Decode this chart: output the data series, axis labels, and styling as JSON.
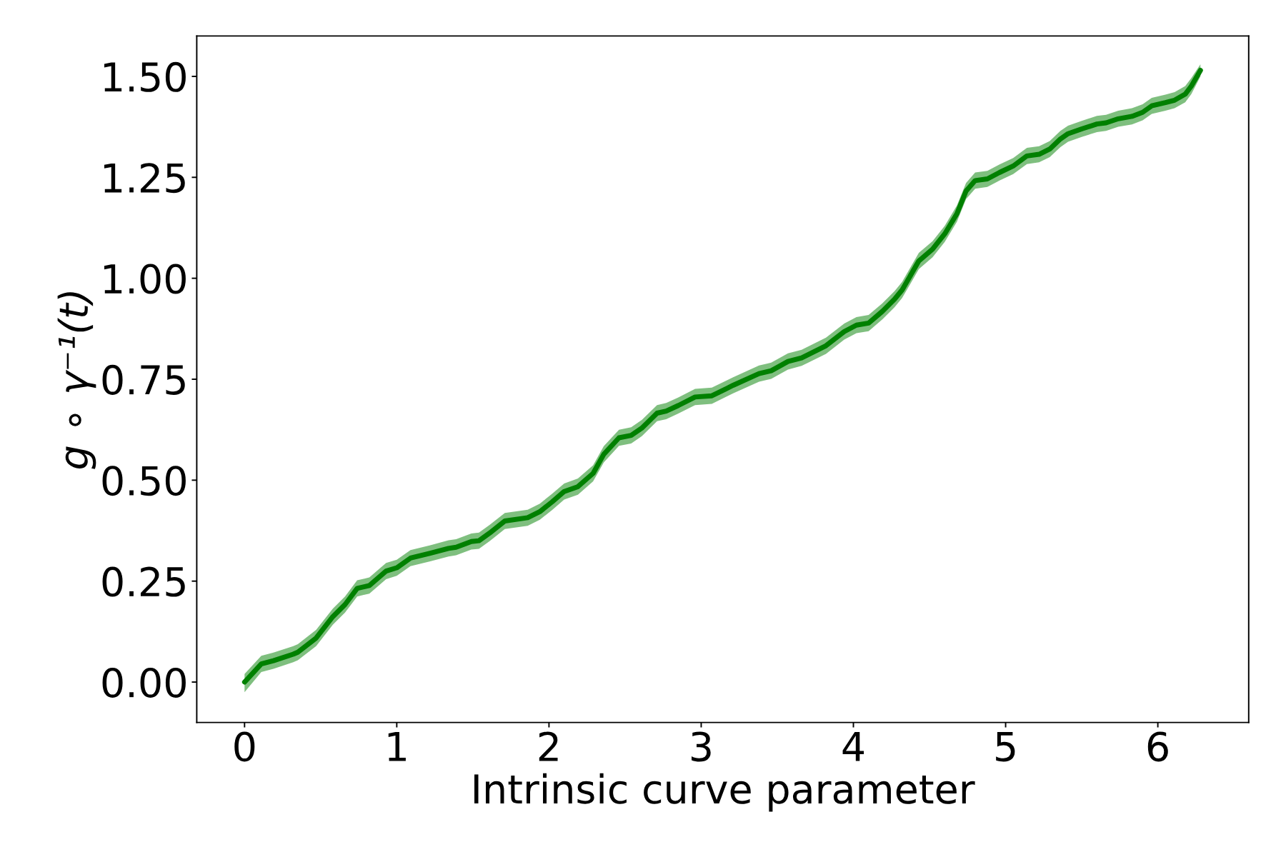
{
  "chart_data": {
    "type": "line",
    "xlabel": "Intrinsic curve parameter",
    "ylabel": "g ∘ γ⁻¹(t)",
    "xlim": [
      -0.314,
      6.597
    ],
    "ylim": [
      -0.1,
      1.6
    ],
    "xticks": [
      0,
      1,
      2,
      3,
      4,
      5,
      6
    ],
    "yticks": [
      {
        "value": 0,
        "label": "0.00"
      },
      {
        "value": 0.25,
        "label": "0.25"
      },
      {
        "value": 0.5,
        "label": "0.50"
      },
      {
        "value": 0.75,
        "label": "0.75"
      },
      {
        "value": 1,
        "label": "1.00"
      },
      {
        "value": 1.25,
        "label": "1.25"
      },
      {
        "value": 1.5,
        "label": "1.50"
      }
    ],
    "x": [
      0,
      0.11,
      0.19,
      0.32,
      0.35,
      0.47,
      0.58,
      0.66,
      0.74,
      0.82,
      0.93,
      1.0,
      1.09,
      1.22,
      1.34,
      1.39,
      1.49,
      1.54,
      1.61,
      1.71,
      1.86,
      1.94,
      2.02,
      2.1,
      2.19,
      2.29,
      2.36,
      2.46,
      2.54,
      2.61,
      2.71,
      2.77,
      2.85,
      2.96,
      3.07,
      3.21,
      3.38,
      3.46,
      3.57,
      3.66,
      3.82,
      3.94,
      4.02,
      4.1,
      4.19,
      4.27,
      4.32,
      4.43,
      4.52,
      4.6,
      4.68,
      4.74,
      4.8,
      4.88,
      4.96,
      5.05,
      5.14,
      5.22,
      5.29,
      5.36,
      5.41,
      5.5,
      5.6,
      5.66,
      5.74,
      5.83,
      5.9,
      5.96,
      6.05,
      6.11,
      6.18,
      6.22,
      6.28
    ],
    "series": [
      {
        "color": "#008000",
        "values": [
          0,
          0.045,
          0.053,
          0.069,
          0.074,
          0.109,
          0.162,
          0.192,
          0.232,
          0.239,
          0.275,
          0.283,
          0.307,
          0.319,
          0.331,
          0.334,
          0.348,
          0.35,
          0.369,
          0.399,
          0.407,
          0.422,
          0.446,
          0.472,
          0.484,
          0.517,
          0.564,
          0.605,
          0.611,
          0.629,
          0.666,
          0.671,
          0.685,
          0.706,
          0.709,
          0.735,
          0.764,
          0.771,
          0.794,
          0.803,
          0.833,
          0.868,
          0.884,
          0.889,
          0.918,
          0.948,
          0.971,
          1.043,
          1.072,
          1.11,
          1.16,
          1.216,
          1.242,
          1.246,
          1.262,
          1.278,
          1.303,
          1.307,
          1.32,
          1.345,
          1.358,
          1.37,
          1.382,
          1.385,
          1.395,
          1.401,
          1.411,
          1.427,
          1.435,
          1.441,
          1.456,
          1.476,
          1.515
        ],
        "upper": [
          0.02,
          0.065,
          0.073,
          0.089,
          0.094,
          0.129,
          0.182,
          0.212,
          0.252,
          0.259,
          0.295,
          0.303,
          0.327,
          0.339,
          0.351,
          0.354,
          0.368,
          0.37,
          0.389,
          0.419,
          0.427,
          0.442,
          0.466,
          0.492,
          0.504,
          0.537,
          0.584,
          0.625,
          0.631,
          0.649,
          0.686,
          0.691,
          0.705,
          0.726,
          0.729,
          0.755,
          0.784,
          0.791,
          0.814,
          0.823,
          0.853,
          0.888,
          0.904,
          0.909,
          0.938,
          0.968,
          0.991,
          1.063,
          1.092,
          1.13,
          1.18,
          1.236,
          1.262,
          1.266,
          1.282,
          1.298,
          1.323,
          1.327,
          1.34,
          1.365,
          1.378,
          1.39,
          1.402,
          1.405,
          1.415,
          1.421,
          1.431,
          1.447,
          1.455,
          1.461,
          1.476,
          1.496,
          1.53
        ],
        "lower": [
          -0.025,
          0.025,
          0.033,
          0.049,
          0.054,
          0.089,
          0.142,
          0.172,
          0.212,
          0.219,
          0.255,
          0.263,
          0.287,
          0.299,
          0.311,
          0.314,
          0.328,
          0.33,
          0.349,
          0.379,
          0.387,
          0.402,
          0.426,
          0.452,
          0.464,
          0.497,
          0.544,
          0.585,
          0.591,
          0.609,
          0.646,
          0.651,
          0.665,
          0.686,
          0.689,
          0.715,
          0.744,
          0.751,
          0.774,
          0.783,
          0.813,
          0.848,
          0.864,
          0.869,
          0.898,
          0.928,
          0.951,
          1.023,
          1.052,
          1.09,
          1.14,
          1.196,
          1.222,
          1.226,
          1.242,
          1.258,
          1.283,
          1.287,
          1.3,
          1.325,
          1.338,
          1.35,
          1.362,
          1.365,
          1.375,
          1.381,
          1.391,
          1.407,
          1.415,
          1.421,
          1.436,
          1.456,
          1.5
        ]
      }
    ]
  }
}
